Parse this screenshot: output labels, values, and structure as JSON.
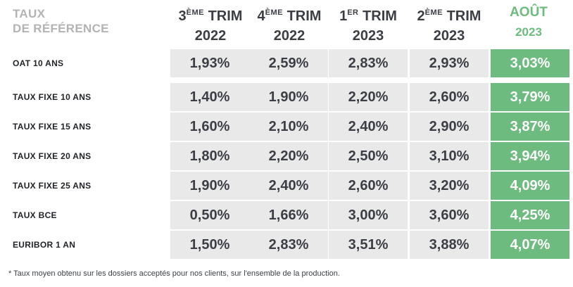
{
  "header": {
    "label_line1": "TAUX",
    "label_line2": "DE RÉFÉRENCE",
    "columns": [
      {
        "num": "3",
        "sup": "ÈME",
        "word": "TRIM",
        "year": "2022"
      },
      {
        "num": "4",
        "sup": "ÈME",
        "word": "TRIM",
        "year": "2022"
      },
      {
        "num": "1",
        "sup": "ER",
        "word": "TRIM",
        "year": "2023"
      },
      {
        "num": "2",
        "sup": "ÈME",
        "word": "TRIM",
        "year": "2023"
      },
      {
        "num": "AOÛT",
        "sup": "",
        "word": "",
        "year": "2023"
      }
    ]
  },
  "rows": [
    {
      "label": "OAT 10 ANS",
      "values": [
        "1,93%",
        "2,59%",
        "2,83%",
        "2,93%",
        "3,03%"
      ]
    },
    {
      "label": "TAUX FIXE 10 ANS",
      "values": [
        "1,40%",
        "1,90%",
        "2,20%",
        "2,60%",
        "3,79%"
      ]
    },
    {
      "label": "TAUX FIXE 15 ANS",
      "values": [
        "1,60%",
        "2,10%",
        "2,40%",
        "2,90%",
        "3,87%"
      ]
    },
    {
      "label": "TAUX FIXE 20 ANS",
      "values": [
        "1,80%",
        "2,20%",
        "2,50%",
        "3,10%",
        "3,94%"
      ]
    },
    {
      "label": "TAUX FIXE 25 ANS",
      "values": [
        "1,90%",
        "2,40%",
        "2,60%",
        "3,20%",
        "4,09%"
      ]
    },
    {
      "label": "TAUX BCE",
      "values": [
        "0,50%",
        "1,66%",
        "3,00%",
        "3,60%",
        "4,25%"
      ]
    },
    {
      "label": "EURIBOR 1 AN",
      "values": [
        "1,50%",
        "2,83%",
        "3,51%",
        "3,88%",
        "4,07%"
      ]
    }
  ],
  "footnote": "* Taux moyen obtenu sur les dossiers acceptés pour nos clients, sur l'ensemble de la production.",
  "colors": {
    "accent": "#6dbb7e",
    "cell_bg": "#e9e9ea",
    "text": "#3b3f45",
    "muted": "#b3b3b3"
  }
}
